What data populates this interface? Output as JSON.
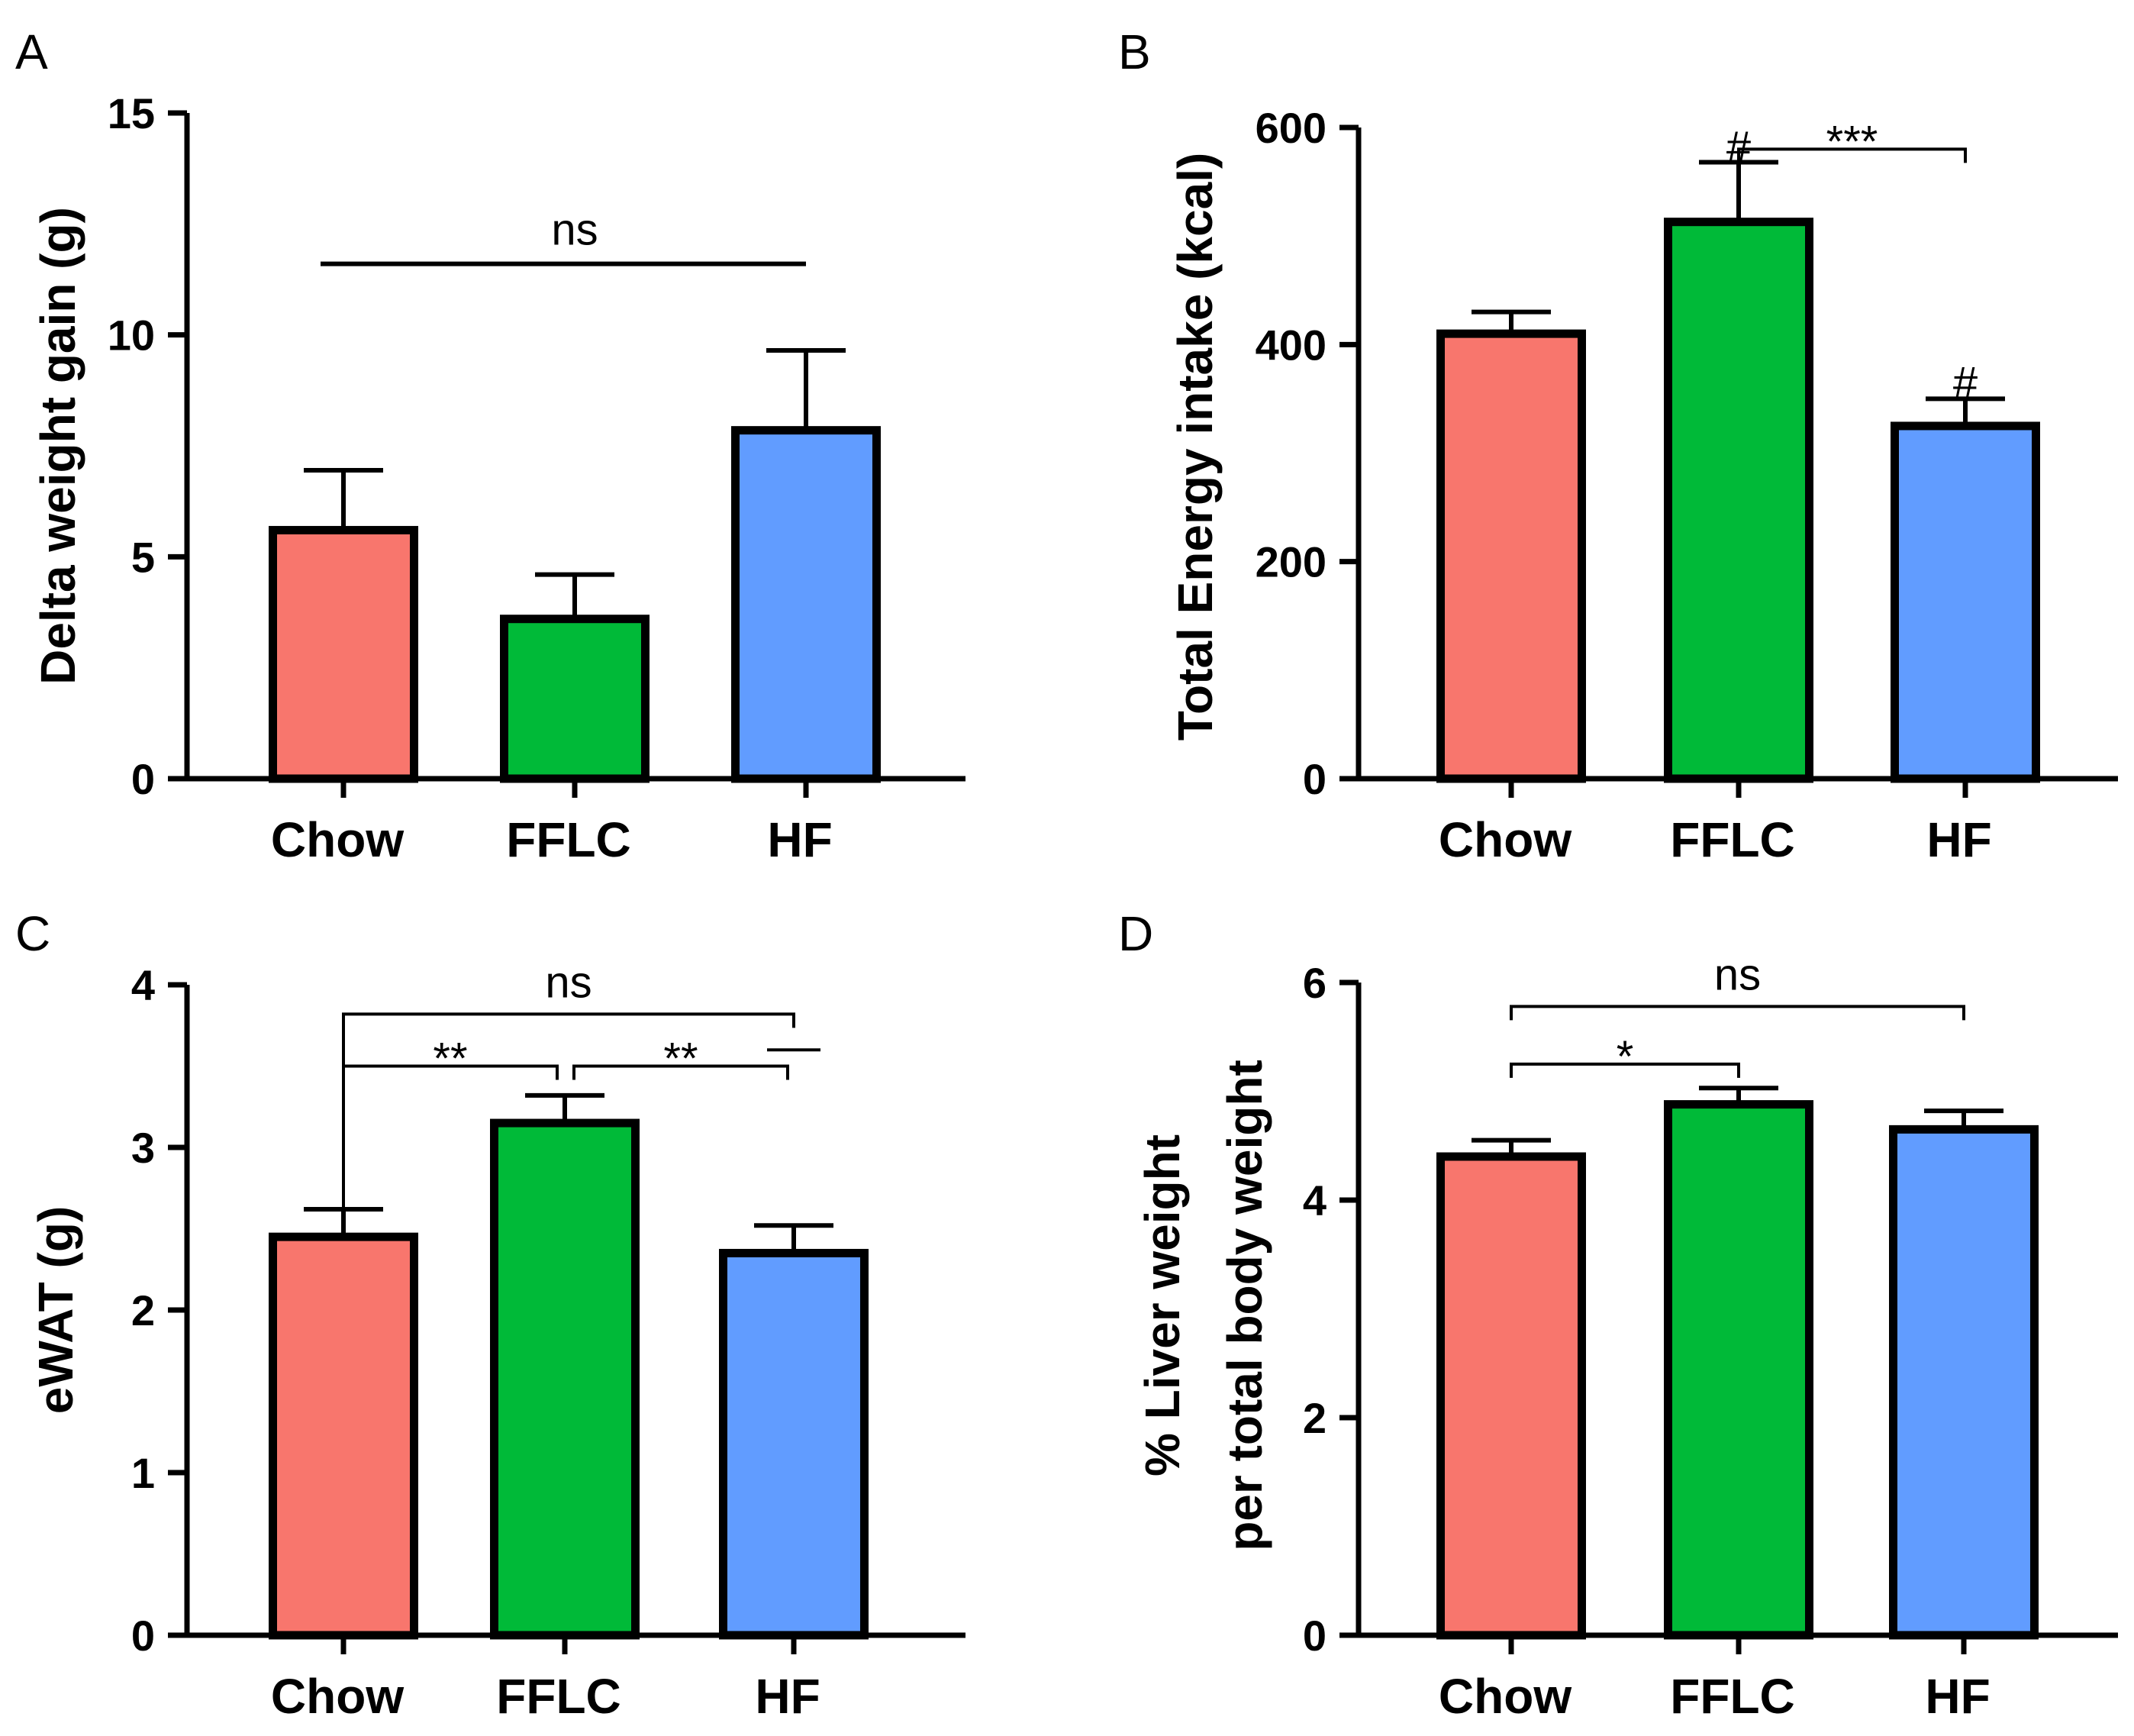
{
  "colors": {
    "Chow": "#F8766D",
    "FFLC": "#00BA38",
    "HF": "#619CFF",
    "stroke": "#000000"
  },
  "chart_data": [
    {
      "panel": "A",
      "type": "bar",
      "categories": [
        "Chow",
        "FFLC",
        "HF"
      ],
      "values": [
        5.6,
        3.6,
        7.85
      ],
      "errors": [
        1.35,
        1.0,
        1.8
      ],
      "ylabel": "Delta weight gain (g)",
      "ylim": [
        0,
        15
      ],
      "yticks": [
        0,
        5,
        10,
        15
      ],
      "yticklabels": [
        "0",
        "5",
        "10",
        "15"
      ],
      "annotations": [
        {
          "type": "line",
          "from": "Chow",
          "to": "HF",
          "y": 11.6,
          "label": "ns"
        }
      ]
    },
    {
      "panel": "B",
      "type": "bar",
      "categories": [
        "Chow",
        "FFLC",
        "HF"
      ],
      "values": [
        410,
        513,
        325
      ],
      "errors": [
        20,
        55,
        25
      ],
      "ylabel": "Total Energy intake (kcal)",
      "ylim": [
        0,
        600
      ],
      "yticks": [
        0,
        200,
        400,
        600
      ],
      "yticklabels": [
        "0",
        "200",
        "400",
        "600"
      ],
      "annotations": [
        {
          "type": "bracket",
          "from": "FFLC",
          "to": "HF",
          "y": 580,
          "label": "***"
        },
        {
          "type": "mark",
          "at": "FFLC",
          "y": 582,
          "label": "#"
        },
        {
          "type": "mark",
          "at": "HF",
          "y": 365,
          "label": "#"
        }
      ]
    },
    {
      "panel": "C",
      "type": "bar",
      "categories": [
        "Chow",
        "FFLC",
        "HF"
      ],
      "values": [
        2.45,
        3.15,
        2.35
      ],
      "errors": [
        0.17,
        0.17,
        0.17
      ],
      "ylabel": "eWAT (g)",
      "ylim": [
        0,
        4
      ],
      "yticks": [
        0,
        1,
        2,
        3,
        4
      ],
      "yticklabels": [
        "0",
        "1",
        "2",
        "3",
        "4"
      ],
      "annotations": [
        {
          "type": "bracket",
          "from": "Chow",
          "to": "HF",
          "y": 3.82,
          "label": "ns"
        },
        {
          "type": "bracket",
          "from": "Chow",
          "to": "FFLC",
          "y": 3.5,
          "label": "**"
        },
        {
          "type": "bracket",
          "from": "FFLC",
          "to": "HF",
          "y": 3.5,
          "label": "**"
        }
      ]
    },
    {
      "panel": "D",
      "type": "bar",
      "categories": [
        "Chow",
        "FFLC",
        "HF"
      ],
      "values": [
        4.4,
        4.88,
        4.65
      ],
      "errors": [
        0.15,
        0.15,
        0.17
      ],
      "ylabel": [
        "% Liver weight",
        "per total body weight"
      ],
      "ylim": [
        0,
        6
      ],
      "yticks": [
        0,
        2,
        4,
        6
      ],
      "yticklabels": [
        "0",
        "2",
        "4",
        "6"
      ],
      "annotations": [
        {
          "type": "bracket",
          "from": "Chow",
          "to": "HF",
          "y": 5.78,
          "label": "ns"
        },
        {
          "type": "bracket",
          "from": "Chow",
          "to": "FFLC",
          "y": 5.25,
          "label": "*"
        }
      ]
    }
  ]
}
